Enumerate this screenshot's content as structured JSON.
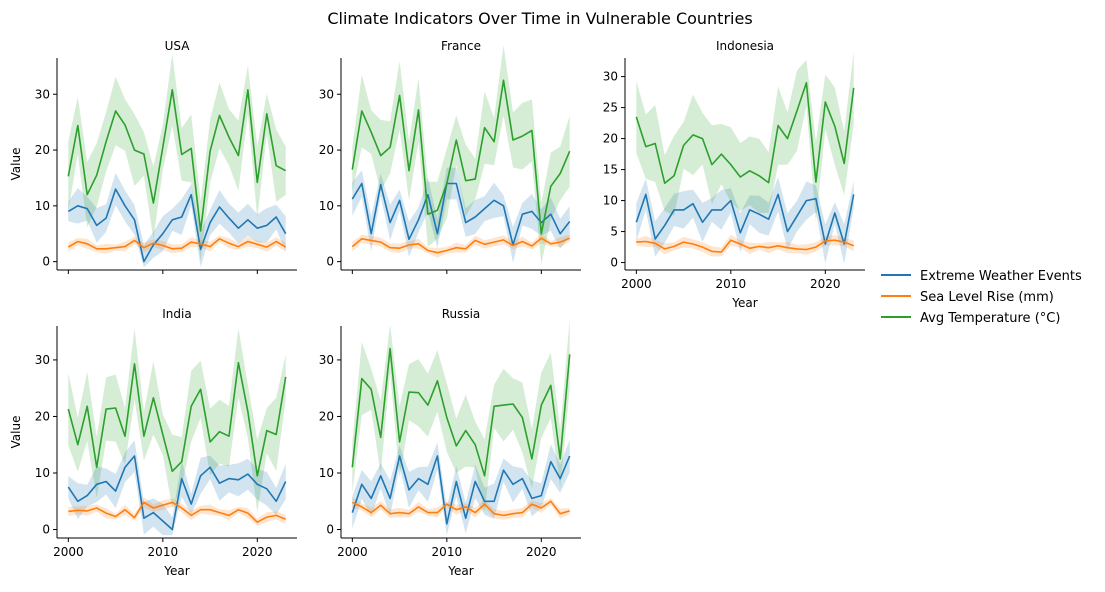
{
  "figure": {
    "title": "Climate Indicators Over Time in Vulnerable Countries",
    "xlabel": "Year",
    "ylabel": "Value"
  },
  "legend": {
    "placement": "right",
    "entries": [
      {
        "key": "events",
        "label": "Extreme Weather Events",
        "color": "#1f77b4"
      },
      {
        "key": "sea",
        "label": "Sea Level Rise (mm)",
        "color": "#ff7f0e"
      },
      {
        "key": "temp",
        "label": "Avg Temperature (°C)",
        "color": "#2ca02c"
      }
    ]
  },
  "chart_data": [
    {
      "type": "line",
      "title": "USA",
      "xlabel": "",
      "ylabel": "Value",
      "xlim": [
        1998.8,
        2024.2
      ],
      "ylim": [
        -1.5,
        36.5
      ],
      "xticks": [
        2000,
        2010,
        2020
      ],
      "yticks": [
        0,
        10,
        20,
        30
      ],
      "show_xticklabels": false,
      "show_ylabel": true,
      "x": [
        2000,
        2001,
        2002,
        2003,
        2004,
        2005,
        2006,
        2007,
        2008,
        2009,
        2010,
        2011,
        2012,
        2013,
        2014,
        2015,
        2016,
        2017,
        2018,
        2019,
        2020,
        2021,
        2022,
        2023
      ],
      "series": [
        {
          "name": "Extreme Weather Events",
          "values": [
            9,
            10,
            9.5,
            6.5,
            7.8,
            13,
            10,
            7.5,
            0,
            3,
            5,
            7.5,
            8,
            12,
            2.2,
            7,
            9.8,
            7.8,
            6,
            7.5,
            6,
            6.5,
            8,
            5
          ]
        },
        {
          "name": "Sea Level Rise (mm)",
          "values": [
            2.6,
            3.6,
            3.2,
            2.3,
            2.3,
            2.5,
            2.7,
            3.8,
            2.5,
            3.3,
            2.9,
            2.3,
            2.4,
            3.5,
            3.2,
            2.7,
            4.1,
            3.3,
            2.7,
            3.6,
            3.1,
            2.6,
            3.6,
            2.6
          ]
        },
        {
          "name": "Avg Temperature (°C)",
          "values": [
            15.3,
            24.4,
            12,
            15.5,
            21.5,
            27,
            24.5,
            20,
            19.3,
            10.5,
            20.5,
            30.8,
            19.2,
            20.3,
            5.5,
            19.8,
            26.2,
            22.3,
            19,
            30.8,
            14.2,
            26.5,
            17.2,
            16.3
          ]
        }
      ]
    },
    {
      "type": "line",
      "title": "France",
      "xlabel": "",
      "ylabel": "",
      "xlim": [
        1998.8,
        2024.2
      ],
      "ylim": [
        -1.5,
        36.5
      ],
      "xticks": [
        2000,
        2010,
        2020
      ],
      "yticks": [
        0,
        10,
        20,
        30
      ],
      "show_xticklabels": false,
      "show_ylabel": false,
      "x": [
        2000,
        2001,
        2002,
        2003,
        2004,
        2005,
        2006,
        2007,
        2008,
        2009,
        2010,
        2011,
        2012,
        2013,
        2014,
        2015,
        2016,
        2017,
        2018,
        2019,
        2020,
        2021,
        2022,
        2023
      ],
      "series": [
        {
          "name": "Extreme Weather Events",
          "values": [
            11.2,
            14,
            5,
            13.8,
            7,
            11,
            4,
            7.5,
            12,
            5,
            14,
            14,
            7,
            8,
            9.5,
            11,
            10,
            3,
            8.5,
            9,
            7,
            8.5,
            5,
            7.2
          ]
        },
        {
          "name": "Sea Level Rise (mm)",
          "values": [
            2.7,
            4.1,
            3.8,
            3.5,
            2.5,
            2.4,
            3,
            3.2,
            2,
            1.6,
            2,
            2.5,
            2.3,
            3.8,
            3.1,
            3.5,
            3.9,
            2.9,
            3.6,
            2.8,
            4.2,
            3.2,
            3.5,
            4.2
          ]
        },
        {
          "name": "Avg Temperature (°C)",
          "values": [
            16.5,
            27,
            23.2,
            19,
            20.5,
            29.8,
            16.3,
            27.2,
            8.5,
            9.2,
            14,
            21.8,
            14.5,
            14.8,
            24,
            21.5,
            32.5,
            21.8,
            22.5,
            23.5,
            5,
            13.5,
            15.8,
            19.8
          ]
        }
      ]
    },
    {
      "type": "line",
      "title": "Indonesia",
      "xlabel": "Year",
      "ylabel": "",
      "xlim": [
        1998.8,
        2024.2
      ],
      "ylim": [
        -1.2,
        33
      ],
      "xticks": [
        2000,
        2010,
        2020
      ],
      "yticks": [
        0,
        5,
        10,
        15,
        20,
        25,
        30
      ],
      "show_xticklabels": true,
      "show_ylabel": false,
      "x": [
        2000,
        2001,
        2002,
        2003,
        2004,
        2005,
        2006,
        2007,
        2008,
        2009,
        2010,
        2011,
        2012,
        2013,
        2014,
        2015,
        2016,
        2017,
        2018,
        2019,
        2020,
        2021,
        2022,
        2023
      ],
      "series": [
        {
          "name": "Extreme Weather Events",
          "values": [
            6.5,
            11,
            3.8,
            6,
            8.5,
            8.5,
            9.5,
            6.5,
            8.5,
            8.5,
            10,
            4.8,
            8.5,
            7.8,
            7,
            11,
            5,
            7.5,
            10,
            10.3,
            3,
            8,
            3,
            11
          ]
        },
        {
          "name": "Sea Level Rise (mm)",
          "values": [
            3.3,
            3.4,
            3.1,
            2.2,
            2.6,
            3.3,
            3,
            2.5,
            1.8,
            1.7,
            3.6,
            3,
            2.3,
            2.6,
            2.4,
            2.7,
            2.4,
            2.2,
            2.1,
            2.5,
            3.5,
            3.6,
            3.3,
            2.7
          ]
        },
        {
          "name": "Avg Temperature (°C)",
          "values": [
            23.5,
            18.7,
            19.2,
            12.8,
            14,
            18.9,
            20.6,
            20,
            15.8,
            17.5,
            15.8,
            13.8,
            14.8,
            14,
            12.9,
            22.1,
            20,
            24.5,
            29,
            13,
            25.9,
            22,
            16,
            28.2
          ]
        }
      ]
    },
    {
      "type": "line",
      "title": "India",
      "xlabel": "Year",
      "ylabel": "Value",
      "xlim": [
        1998.8,
        2024.2
      ],
      "ylim": [
        -1.5,
        36
      ],
      "xticks": [
        2000,
        2010,
        2020
      ],
      "yticks": [
        0,
        10,
        20,
        30
      ],
      "show_xticklabels": true,
      "show_ylabel": true,
      "x": [
        2000,
        2001,
        2002,
        2003,
        2004,
        2005,
        2006,
        2007,
        2008,
        2009,
        2010,
        2011,
        2012,
        2013,
        2014,
        2015,
        2016,
        2017,
        2018,
        2019,
        2020,
        2021,
        2022,
        2023
      ],
      "series": [
        {
          "name": "Extreme Weather Events",
          "values": [
            7.5,
            5,
            6,
            8,
            8.5,
            6.8,
            11,
            13,
            2,
            3,
            1.5,
            0,
            9,
            4.5,
            9.5,
            11,
            8.2,
            9,
            8.8,
            9.8,
            8,
            7.2,
            5,
            8.5
          ]
        },
        {
          "name": "Sea Level Rise (mm)",
          "values": [
            3.2,
            3.4,
            3.3,
            3.8,
            2.9,
            2.3,
            3.5,
            2.1,
            4.8,
            3.8,
            4.3,
            4.8,
            3.8,
            2.5,
            3.5,
            3.5,
            3,
            2.5,
            3.5,
            2.9,
            1.3,
            2.2,
            2.5,
            1.8
          ]
        },
        {
          "name": "Avg Temperature (°C)",
          "values": [
            21.3,
            15,
            21.8,
            11,
            21.3,
            21.5,
            16.5,
            29.3,
            16.5,
            23.3,
            16.8,
            10.3,
            12,
            21.8,
            24.8,
            15.5,
            17.3,
            16.5,
            29.5,
            20.8,
            9.5,
            17.5,
            16.8,
            27
          ]
        }
      ]
    },
    {
      "type": "line",
      "title": "Russia",
      "xlabel": "Year",
      "ylabel": "",
      "xlim": [
        1998.8,
        2024.2
      ],
      "ylim": [
        -1.5,
        36
      ],
      "xticks": [
        2000,
        2010,
        2020
      ],
      "yticks": [
        0,
        10,
        20,
        30
      ],
      "show_xticklabels": true,
      "show_ylabel": false,
      "x": [
        2000,
        2001,
        2002,
        2003,
        2004,
        2005,
        2006,
        2007,
        2008,
        2009,
        2010,
        2011,
        2012,
        2013,
        2014,
        2015,
        2016,
        2017,
        2018,
        2019,
        2020,
        2021,
        2022,
        2023
      ],
      "series": [
        {
          "name": "Extreme Weather Events",
          "values": [
            3,
            8,
            5.5,
            9.5,
            5.5,
            13,
            7,
            9,
            8,
            13,
            1,
            8.5,
            2,
            8.5,
            5,
            5,
            10.5,
            8,
            9,
            5.5,
            6,
            12,
            9,
            13
          ]
        },
        {
          "name": "Sea Level Rise (mm)",
          "values": [
            4.8,
            4,
            3,
            4.3,
            2.8,
            3,
            2.8,
            4,
            3,
            3,
            4.5,
            3.5,
            4,
            3,
            4.5,
            2.8,
            2.5,
            2.8,
            3,
            4.5,
            3.8,
            5,
            2.8,
            3.3
          ]
        },
        {
          "name": "Avg Temperature (°C)",
          "values": [
            11,
            26.7,
            24.8,
            16.3,
            32,
            15.5,
            24.3,
            24.2,
            22,
            26.3,
            19.8,
            14.8,
            17.5,
            15,
            9.5,
            21.8,
            22,
            22.2,
            19.8,
            12.5,
            22,
            25.5,
            12.5,
            31
          ]
        }
      ]
    }
  ]
}
